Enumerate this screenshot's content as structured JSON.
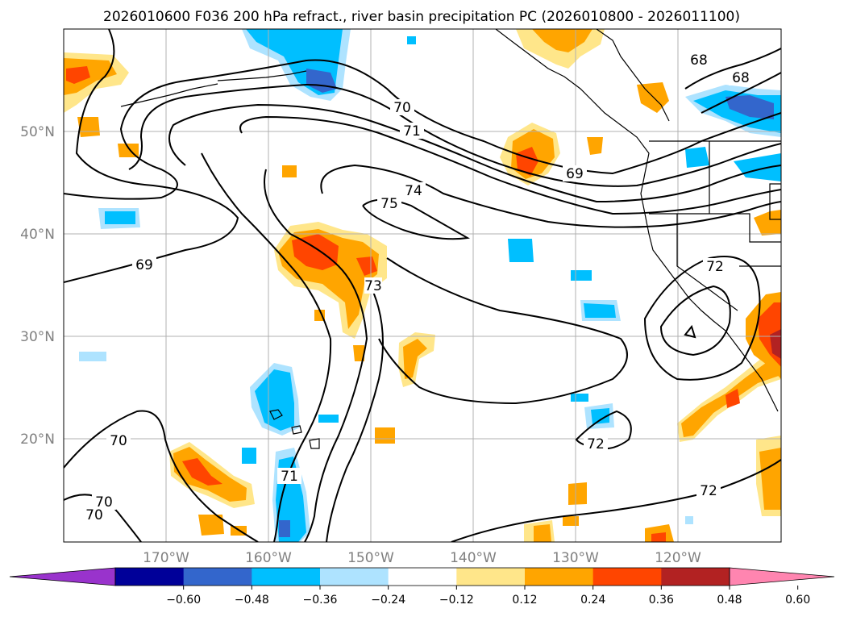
{
  "title": "2026010600 F036 200 hPa refract., river basin precipitation PC (2026010800 - 2026011100)",
  "map": {
    "lon_range": [
      -180,
      -110
    ],
    "lat_range": [
      10,
      60
    ],
    "lat_labels": [
      "50°N",
      "40°N",
      "30°N",
      "20°N"
    ],
    "lat_values": [
      50,
      40,
      30,
      20
    ],
    "lon_labels": [
      "170°W",
      "160°W",
      "150°W",
      "140°W",
      "130°W",
      "120°W"
    ],
    "lon_values": [
      -170,
      -160,
      -150,
      -140,
      -130,
      -120
    ],
    "contour_labels": [
      "68",
      "68",
      "69",
      "69",
      "70",
      "70",
      "70",
      "70",
      "71",
      "71",
      "72",
      "72",
      "72",
      "73",
      "74",
      "75"
    ]
  },
  "colorbar": {
    "ticks": [
      "−0.60",
      "−0.48",
      "−0.36",
      "−0.24",
      "−0.12",
      "0.12",
      "0.24",
      "0.36",
      "0.48",
      "0.60"
    ],
    "colors": [
      "#9933cc",
      "#000099",
      "#3366cc",
      "#00bfff",
      "#aee3ff",
      "#ffffff",
      "#ffe68a",
      "#ffa500",
      "#ff4500",
      "#b22222",
      "#ff85b0"
    ],
    "extend": "both"
  },
  "colors": {
    "grid": "#b0b0b0",
    "contour": "#000000",
    "label_gray": "#808080"
  }
}
